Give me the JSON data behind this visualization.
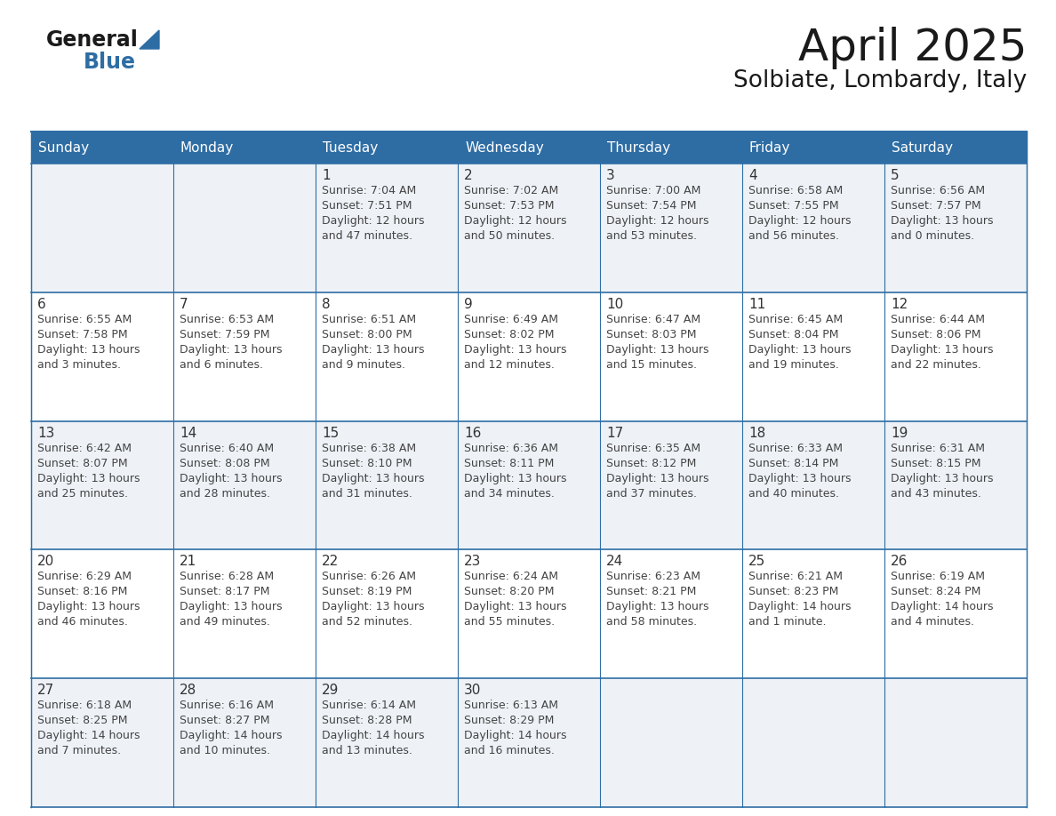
{
  "title": "April 2025",
  "subtitle": "Solbiate, Lombardy, Italy",
  "header_bg": "#2E6DA4",
  "header_text_color": "#FFFFFF",
  "row_bg_light": "#EAEFF5",
  "row_bg_white": "#FFFFFF",
  "days": [
    {
      "date": 1,
      "col": 2,
      "row": 0,
      "sunrise": "7:04 AM",
      "sunset": "7:51 PM",
      "daylight_h": "12 hours",
      "daylight_m": "and 47 minutes."
    },
    {
      "date": 2,
      "col": 3,
      "row": 0,
      "sunrise": "7:02 AM",
      "sunset": "7:53 PM",
      "daylight_h": "12 hours",
      "daylight_m": "and 50 minutes."
    },
    {
      "date": 3,
      "col": 4,
      "row": 0,
      "sunrise": "7:00 AM",
      "sunset": "7:54 PM",
      "daylight_h": "12 hours",
      "daylight_m": "and 53 minutes."
    },
    {
      "date": 4,
      "col": 5,
      "row": 0,
      "sunrise": "6:58 AM",
      "sunset": "7:55 PM",
      "daylight_h": "12 hours",
      "daylight_m": "and 56 minutes."
    },
    {
      "date": 5,
      "col": 6,
      "row": 0,
      "sunrise": "6:56 AM",
      "sunset": "7:57 PM",
      "daylight_h": "13 hours",
      "daylight_m": "and 0 minutes."
    },
    {
      "date": 6,
      "col": 0,
      "row": 1,
      "sunrise": "6:55 AM",
      "sunset": "7:58 PM",
      "daylight_h": "13 hours",
      "daylight_m": "and 3 minutes."
    },
    {
      "date": 7,
      "col": 1,
      "row": 1,
      "sunrise": "6:53 AM",
      "sunset": "7:59 PM",
      "daylight_h": "13 hours",
      "daylight_m": "and 6 minutes."
    },
    {
      "date": 8,
      "col": 2,
      "row": 1,
      "sunrise": "6:51 AM",
      "sunset": "8:00 PM",
      "daylight_h": "13 hours",
      "daylight_m": "and 9 minutes."
    },
    {
      "date": 9,
      "col": 3,
      "row": 1,
      "sunrise": "6:49 AM",
      "sunset": "8:02 PM",
      "daylight_h": "13 hours",
      "daylight_m": "and 12 minutes."
    },
    {
      "date": 10,
      "col": 4,
      "row": 1,
      "sunrise": "6:47 AM",
      "sunset": "8:03 PM",
      "daylight_h": "13 hours",
      "daylight_m": "and 15 minutes."
    },
    {
      "date": 11,
      "col": 5,
      "row": 1,
      "sunrise": "6:45 AM",
      "sunset": "8:04 PM",
      "daylight_h": "13 hours",
      "daylight_m": "and 19 minutes."
    },
    {
      "date": 12,
      "col": 6,
      "row": 1,
      "sunrise": "6:44 AM",
      "sunset": "8:06 PM",
      "daylight_h": "13 hours",
      "daylight_m": "and 22 minutes."
    },
    {
      "date": 13,
      "col": 0,
      "row": 2,
      "sunrise": "6:42 AM",
      "sunset": "8:07 PM",
      "daylight_h": "13 hours",
      "daylight_m": "and 25 minutes."
    },
    {
      "date": 14,
      "col": 1,
      "row": 2,
      "sunrise": "6:40 AM",
      "sunset": "8:08 PM",
      "daylight_h": "13 hours",
      "daylight_m": "and 28 minutes."
    },
    {
      "date": 15,
      "col": 2,
      "row": 2,
      "sunrise": "6:38 AM",
      "sunset": "8:10 PM",
      "daylight_h": "13 hours",
      "daylight_m": "and 31 minutes."
    },
    {
      "date": 16,
      "col": 3,
      "row": 2,
      "sunrise": "6:36 AM",
      "sunset": "8:11 PM",
      "daylight_h": "13 hours",
      "daylight_m": "and 34 minutes."
    },
    {
      "date": 17,
      "col": 4,
      "row": 2,
      "sunrise": "6:35 AM",
      "sunset": "8:12 PM",
      "daylight_h": "13 hours",
      "daylight_m": "and 37 minutes."
    },
    {
      "date": 18,
      "col": 5,
      "row": 2,
      "sunrise": "6:33 AM",
      "sunset": "8:14 PM",
      "daylight_h": "13 hours",
      "daylight_m": "and 40 minutes."
    },
    {
      "date": 19,
      "col": 6,
      "row": 2,
      "sunrise": "6:31 AM",
      "sunset": "8:15 PM",
      "daylight_h": "13 hours",
      "daylight_m": "and 43 minutes."
    },
    {
      "date": 20,
      "col": 0,
      "row": 3,
      "sunrise": "6:29 AM",
      "sunset": "8:16 PM",
      "daylight_h": "13 hours",
      "daylight_m": "and 46 minutes."
    },
    {
      "date": 21,
      "col": 1,
      "row": 3,
      "sunrise": "6:28 AM",
      "sunset": "8:17 PM",
      "daylight_h": "13 hours",
      "daylight_m": "and 49 minutes."
    },
    {
      "date": 22,
      "col": 2,
      "row": 3,
      "sunrise": "6:26 AM",
      "sunset": "8:19 PM",
      "daylight_h": "13 hours",
      "daylight_m": "and 52 minutes."
    },
    {
      "date": 23,
      "col": 3,
      "row": 3,
      "sunrise": "6:24 AM",
      "sunset": "8:20 PM",
      "daylight_h": "13 hours",
      "daylight_m": "and 55 minutes."
    },
    {
      "date": 24,
      "col": 4,
      "row": 3,
      "sunrise": "6:23 AM",
      "sunset": "8:21 PM",
      "daylight_h": "13 hours",
      "daylight_m": "and 58 minutes."
    },
    {
      "date": 25,
      "col": 5,
      "row": 3,
      "sunrise": "6:21 AM",
      "sunset": "8:23 PM",
      "daylight_h": "14 hours",
      "daylight_m": "and 1 minute."
    },
    {
      "date": 26,
      "col": 6,
      "row": 3,
      "sunrise": "6:19 AM",
      "sunset": "8:24 PM",
      "daylight_h": "14 hours",
      "daylight_m": "and 4 minutes."
    },
    {
      "date": 27,
      "col": 0,
      "row": 4,
      "sunrise": "6:18 AM",
      "sunset": "8:25 PM",
      "daylight_h": "14 hours",
      "daylight_m": "and 7 minutes."
    },
    {
      "date": 28,
      "col": 1,
      "row": 4,
      "sunrise": "6:16 AM",
      "sunset": "8:27 PM",
      "daylight_h": "14 hours",
      "daylight_m": "and 10 minutes."
    },
    {
      "date": 29,
      "col": 2,
      "row": 4,
      "sunrise": "6:14 AM",
      "sunset": "8:28 PM",
      "daylight_h": "14 hours",
      "daylight_m": "and 13 minutes."
    },
    {
      "date": 30,
      "col": 3,
      "row": 4,
      "sunrise": "6:13 AM",
      "sunset": "8:29 PM",
      "daylight_h": "14 hours",
      "daylight_m": "and 16 minutes."
    }
  ],
  "day_headers": [
    "Sunday",
    "Monday",
    "Tuesday",
    "Wednesday",
    "Thursday",
    "Friday",
    "Saturday"
  ],
  "num_rows": 5,
  "num_cols": 7
}
